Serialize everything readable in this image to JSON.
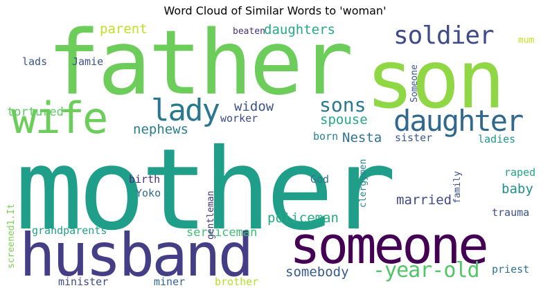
{
  "title": "Word Cloud of Similar Words to 'woman'",
  "words": [
    {
      "text": "mother",
      "color": "#1f9e89"
    },
    {
      "text": "father",
      "color": "#6ccd5a"
    },
    {
      "text": "son",
      "color": "#8fd744"
    },
    {
      "text": "husband",
      "color": "#433e85"
    },
    {
      "text": "someone",
      "color": "#440154"
    },
    {
      "text": "wife",
      "color": "#6ccd5a"
    },
    {
      "text": "daughter",
      "color": "#31688e"
    },
    {
      "text": "soldier",
      "color": "#3e4a89"
    },
    {
      "text": "lady",
      "color": "#2a788e"
    },
    {
      "text": "sons",
      "color": "#2a788e"
    },
    {
      "text": "-year-old",
      "color": "#52c569"
    },
    {
      "text": "daughters",
      "color": "#22a884"
    },
    {
      "text": "parent",
      "color": "#c2df23"
    },
    {
      "text": "widow",
      "color": "#3b528b"
    },
    {
      "text": "nephews",
      "color": "#287d8e"
    },
    {
      "text": "spouse",
      "color": "#22a884"
    },
    {
      "text": "Nesta",
      "color": "#2c728e"
    },
    {
      "text": "married",
      "color": "#3e4989"
    },
    {
      "text": "baby",
      "color": "#21908d"
    },
    {
      "text": "somebody",
      "color": "#375a8c"
    },
    {
      "text": "policeman",
      "color": "#25ab82"
    },
    {
      "text": "serviceman",
      "color": "#3dbc74"
    },
    {
      "text": "tortured",
      "color": "#5ec962"
    },
    {
      "text": "grandparents",
      "color": "#1fa187"
    },
    {
      "text": "minister",
      "color": "#3e4a89"
    },
    {
      "text": "miner",
      "color": "#31688e"
    },
    {
      "text": "brother",
      "color": "#b5de2b"
    },
    {
      "text": "priest",
      "color": "#2d718e"
    },
    {
      "text": "trauma",
      "color": "#3b528b"
    },
    {
      "text": "raped",
      "color": "#21a685"
    },
    {
      "text": "ladies",
      "color": "#1f988b"
    },
    {
      "text": "sister",
      "color": "#3b5a8c"
    },
    {
      "text": "born",
      "color": "#25838e"
    },
    {
      "text": "worker",
      "color": "#3e4989"
    },
    {
      "text": "God",
      "color": "#2c728e"
    },
    {
      "text": "birth",
      "color": "#472d7b"
    },
    {
      "text": "Yoko",
      "color": "#31688e"
    },
    {
      "text": "lads",
      "color": "#3b528b"
    },
    {
      "text": "Jamie",
      "color": "#3b528b"
    },
    {
      "text": "beaten",
      "color": "#46327e"
    },
    {
      "text": "mum",
      "color": "#c8e020"
    },
    {
      "text": "Someone",
      "color": "#39568c"
    },
    {
      "text": "clergymen",
      "color": "#25848e"
    },
    {
      "text": "family",
      "color": "#3b528b"
    },
    {
      "text": "gentleman",
      "color": "#46337f"
    },
    {
      "text": "screened1.It",
      "color": "#7ad151"
    }
  ]
}
